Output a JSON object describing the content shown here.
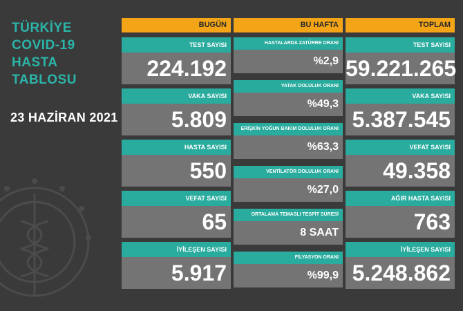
{
  "title": {
    "lines": [
      "TÜRKİYE",
      "COVID-19",
      "HASTA",
      "TABLOSU"
    ]
  },
  "date": "23 HAZİRAN 2021",
  "today": {
    "header": "BUGÜN",
    "items": [
      {
        "label": "TEST SAYISI",
        "value": "224.192"
      },
      {
        "label": "VAKA SAYISI",
        "value": "5.809"
      },
      {
        "label": "HASTA SAYISI",
        "value": "550"
      },
      {
        "label": "VEFAT SAYISI",
        "value": "65"
      },
      {
        "label": "İYİLEŞEN SAYISI",
        "value": "5.917"
      }
    ]
  },
  "week": {
    "header": "BU HAFTA",
    "items": [
      {
        "label": "HASTALARDA ZATÜRRE ORANI",
        "value": "%2,9"
      },
      {
        "label": "YATAK DOLULUK ORANI",
        "value": "%49,3"
      },
      {
        "label": "ERİŞKİN YOĞUN BAKIM DOLULUK ORANI",
        "value": "%63,3"
      },
      {
        "label": "VENTİLATÖR DOLULUK ORANI",
        "value": "%27,0"
      },
      {
        "label": "ORTALAMA TEMASLI TESPİT SÜRESİ",
        "value": "8 SAAT"
      },
      {
        "label": "FİLYASYON ORANI",
        "value": "%99,9"
      }
    ]
  },
  "total": {
    "header": "TOPLAM",
    "items": [
      {
        "label": "TEST SAYISI",
        "value": "59.221.265"
      },
      {
        "label": "VAKA SAYISI",
        "value": "5.387.545"
      },
      {
        "label": "VEFAT SAYISI",
        "value": "49.358"
      },
      {
        "label": "AĞIR HASTA SAYISI",
        "value": "763"
      },
      {
        "label": "İYİLEŞEN SAYISI",
        "value": "5.248.862"
      }
    ]
  },
  "colors": {
    "background": "#3a3a3b",
    "header": "#f3a517",
    "label": "#29ab9e",
    "card": "#747475",
    "title": "#2bb5a8"
  },
  "icons": {
    "emblem": "ministry-of-health-emblem-icon"
  }
}
